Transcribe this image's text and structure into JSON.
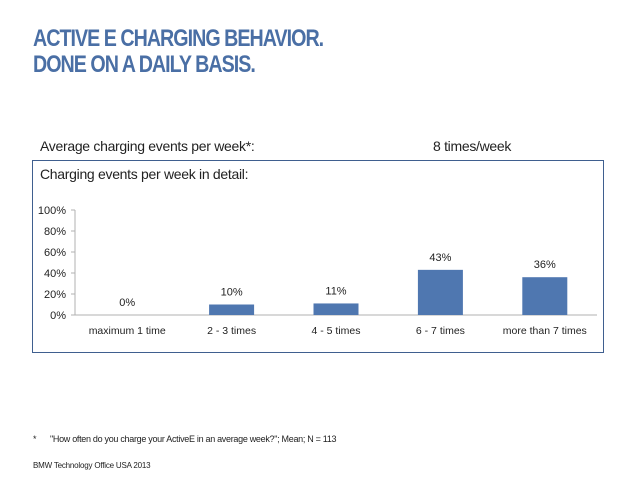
{
  "slide": {
    "title_line1": "ACTIVE E CHARGING BEHAVIOR.",
    "title_line2": "DONE ON A DAILY BASIS.",
    "average_label": "Average charging events per week*:",
    "average_value": "8 times/week",
    "detail_label": "Charging events per week in detail:",
    "footnote_marker": "*",
    "footnote_text": "\"How often do you charge your ActiveE in an average week?\"; Mean; N = 113",
    "source": "BMW Technology Office USA 2013"
  },
  "colors": {
    "title": "#4a6fa5",
    "bar": "#4f77b0",
    "panel_border": "#3f5f8f"
  },
  "chart_data": {
    "type": "bar",
    "title": "Charging events per week in detail:",
    "categories": [
      "maximum 1 time",
      "2 - 3 times",
      "4 - 5 times",
      "6 - 7 times",
      "more than 7 times"
    ],
    "values": [
      0,
      10,
      11,
      43,
      36
    ],
    "data_labels": [
      "0%",
      "10%",
      "11%",
      "43%",
      "36%"
    ],
    "y_ticks": [
      "0%",
      "20%",
      "40%",
      "60%",
      "80%",
      "100%"
    ],
    "ylim": [
      0,
      100
    ],
    "xlabel": "",
    "ylabel": "",
    "grid": false,
    "legend": "none"
  }
}
